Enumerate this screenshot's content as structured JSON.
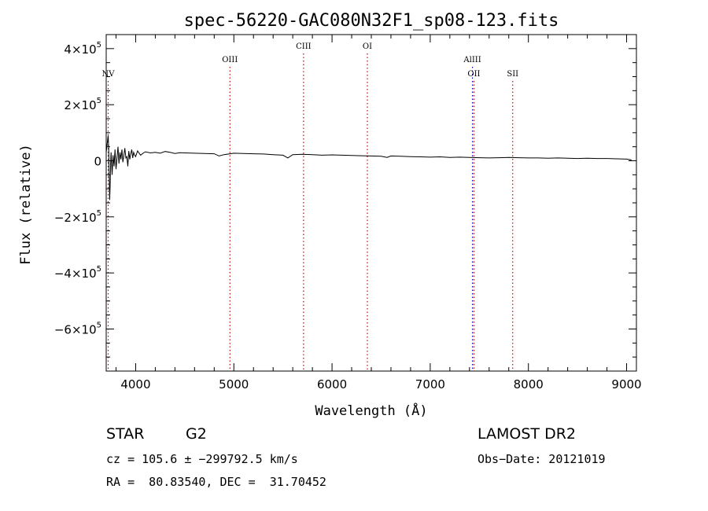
{
  "chart_data": {
    "type": "line",
    "title": "spec-56220-GAC080N32F1_sp08-123.fits",
    "xlabel": "Wavelength (Å)",
    "ylabel": "Flux (relative)",
    "xlim": [
      3700,
      9100
    ],
    "ylim": [
      -750000,
      450000
    ],
    "grid": false,
    "x_ticks": [
      4000,
      5000,
      6000,
      7000,
      8000,
      9000
    ],
    "x_tick_labels": [
      "4000",
      "5000",
      "6000",
      "7000",
      "8000",
      "9000"
    ],
    "y_ticks": [
      {
        "value": 400000,
        "mant": "4×10",
        "exp": "5"
      },
      {
        "value": 200000,
        "mant": "2×10",
        "exp": "5"
      },
      {
        "value": 0,
        "mant": "0",
        "exp": ""
      },
      {
        "value": -200000,
        "mant": "−2×10",
        "exp": "5"
      },
      {
        "value": -400000,
        "mant": "−4×10",
        "exp": "5"
      },
      {
        "value": -600000,
        "mant": "−6×10",
        "exp": "5"
      }
    ],
    "series": [
      {
        "color": "#000000",
        "x": [
          3700,
          3710,
          3720,
          3725,
          3730,
          3735,
          3740,
          3745,
          3750,
          3755,
          3760,
          3770,
          3780,
          3790,
          3800,
          3810,
          3820,
          3830,
          3840,
          3850,
          3860,
          3870,
          3880,
          3890,
          3900,
          3910,
          3920,
          3930,
          3940,
          3950,
          3960,
          3970,
          3980,
          3990,
          4000,
          4020,
          4050,
          4080,
          4100,
          4150,
          4200,
          4250,
          4300,
          4350,
          4400,
          4450,
          4500,
          4600,
          4700,
          4800,
          4850,
          4900,
          5000,
          5100,
          5200,
          5300,
          5400,
          5500,
          5550,
          5600,
          5700,
          5800,
          5900,
          6000,
          6100,
          6200,
          6300,
          6400,
          6500,
          6560,
          6600,
          6700,
          6800,
          6900,
          7000,
          7100,
          7200,
          7300,
          7400,
          7500,
          7600,
          7700,
          7800,
          7900,
          8000,
          8100,
          8200,
          8300,
          8400,
          8500,
          8600,
          8700,
          8800,
          8900,
          9000,
          9050
        ],
        "y": [
          30000,
          60000,
          90000,
          50000,
          -40000,
          -140000,
          -90000,
          -10000,
          30000,
          -10000,
          -50000,
          20000,
          -20000,
          40000,
          -30000,
          10000,
          50000,
          -10000,
          30000,
          5000,
          40000,
          -5000,
          20000,
          45000,
          10000,
          15000,
          -20000,
          35000,
          5000,
          25000,
          40000,
          10000,
          30000,
          20000,
          15000,
          35000,
          20000,
          28000,
          32000,
          28000,
          30000,
          27000,
          33000,
          30000,
          26000,
          29000,
          28000,
          27000,
          26000,
          25000,
          17000,
          22000,
          27000,
          26000,
          25000,
          24000,
          22000,
          20000,
          10000,
          22000,
          23000,
          22000,
          20000,
          21000,
          20000,
          19000,
          18000,
          17000,
          16000,
          12000,
          17000,
          16000,
          15000,
          14000,
          13000,
          14000,
          12000,
          13000,
          12000,
          11000,
          10000,
          11000,
          12000,
          11000,
          10000,
          10000,
          9000,
          10000,
          9000,
          8000,
          9000,
          8000,
          8000,
          7000,
          6000,
          3000
        ]
      }
    ],
    "line_markers": [
      {
        "label": "NV",
        "x": 3720,
        "color": "#cc0000",
        "row": 2
      },
      {
        "label": "OIII",
        "x": 4960,
        "color": "#cc0000",
        "row": 1
      },
      {
        "label": "CIII",
        "x": 5710,
        "color": "#cc0000",
        "row": 0
      },
      {
        "label": "OI",
        "x": 6360,
        "color": "#cc0000",
        "row": 0
      },
      {
        "label": "AlIII",
        "x": 7430,
        "color": "#0000cc",
        "row": 1
      },
      {
        "label": "OII",
        "x": 7445,
        "color": "#cc0000",
        "row": 2
      },
      {
        "label": "SII",
        "x": 7840,
        "color": "#cc0000",
        "row": 2
      }
    ]
  },
  "info": {
    "object_class": "STAR",
    "subclass": "G2",
    "survey": "LAMOST DR2",
    "redshift": "cz = 105.6 ± −299792.5 km/s",
    "obs_date": "Obs−Date: 20121019",
    "coords": "RA =  80.83540, DEC =  31.70452"
  }
}
